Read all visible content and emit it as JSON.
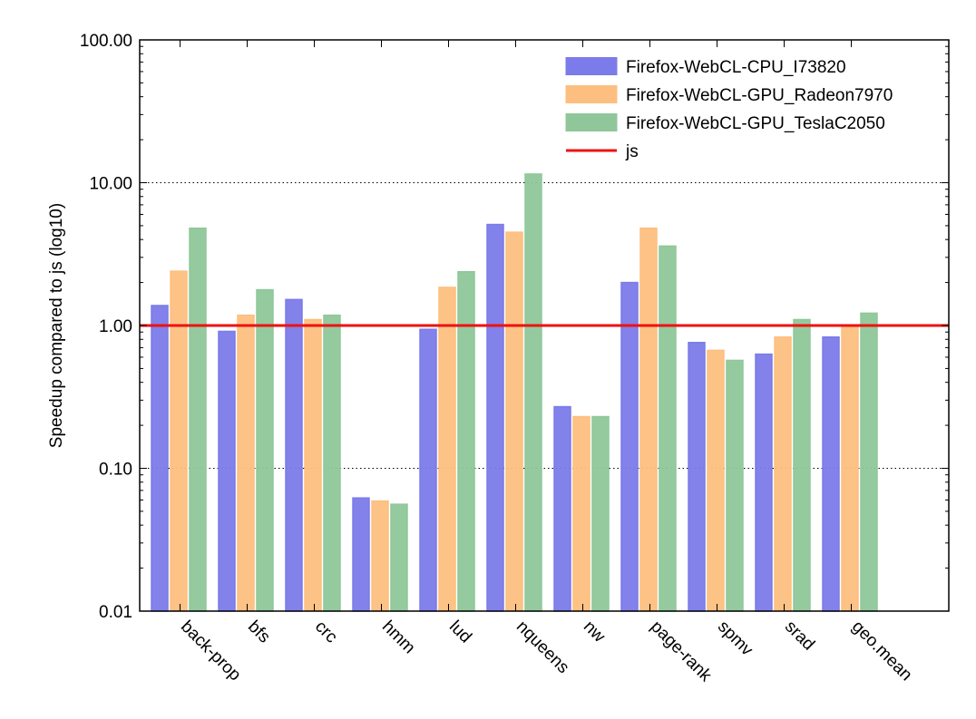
{
  "chart_data": {
    "type": "bar",
    "title": "",
    "xlabel": "",
    "ylabel": "Speedup compared to js (log10)",
    "yscale": "log",
    "ylim": [
      0.01,
      100
    ],
    "yticks": [
      "0.01",
      "0.10",
      "1.00",
      "10.00",
      "100.00"
    ],
    "grid": "horizontal dotted",
    "legend_position": "top-right",
    "categories": [
      "back-prop",
      "bfs",
      "crc",
      "hmm",
      "lud",
      "nqueens",
      "nw",
      "page-rank",
      "spmv",
      "srad",
      "geo.mean"
    ],
    "series": [
      {
        "name": "Firefox-WebCL-CPU_I73820",
        "color": "#7b7be9",
        "values": [
          1.38,
          0.91,
          1.52,
          0.062,
          0.94,
          5.1,
          0.27,
          2.0,
          0.76,
          0.63,
          0.83
        ]
      },
      {
        "name": "Firefox-WebCL-GPU_Radeon7970",
        "color": "#fdbf7f",
        "values": [
          2.4,
          1.18,
          1.1,
          0.059,
          1.85,
          4.5,
          0.23,
          4.8,
          0.67,
          0.83,
          1.0
        ]
      },
      {
        "name": "Firefox-WebCL-GPU_TeslaC2050",
        "color": "#8fc79a",
        "values": [
          4.8,
          1.78,
          1.18,
          0.056,
          2.38,
          11.5,
          0.23,
          3.6,
          0.57,
          1.1,
          1.22
        ]
      }
    ],
    "reference_line": {
      "name": "js",
      "value": 1.0,
      "color": "#ee1111"
    }
  }
}
